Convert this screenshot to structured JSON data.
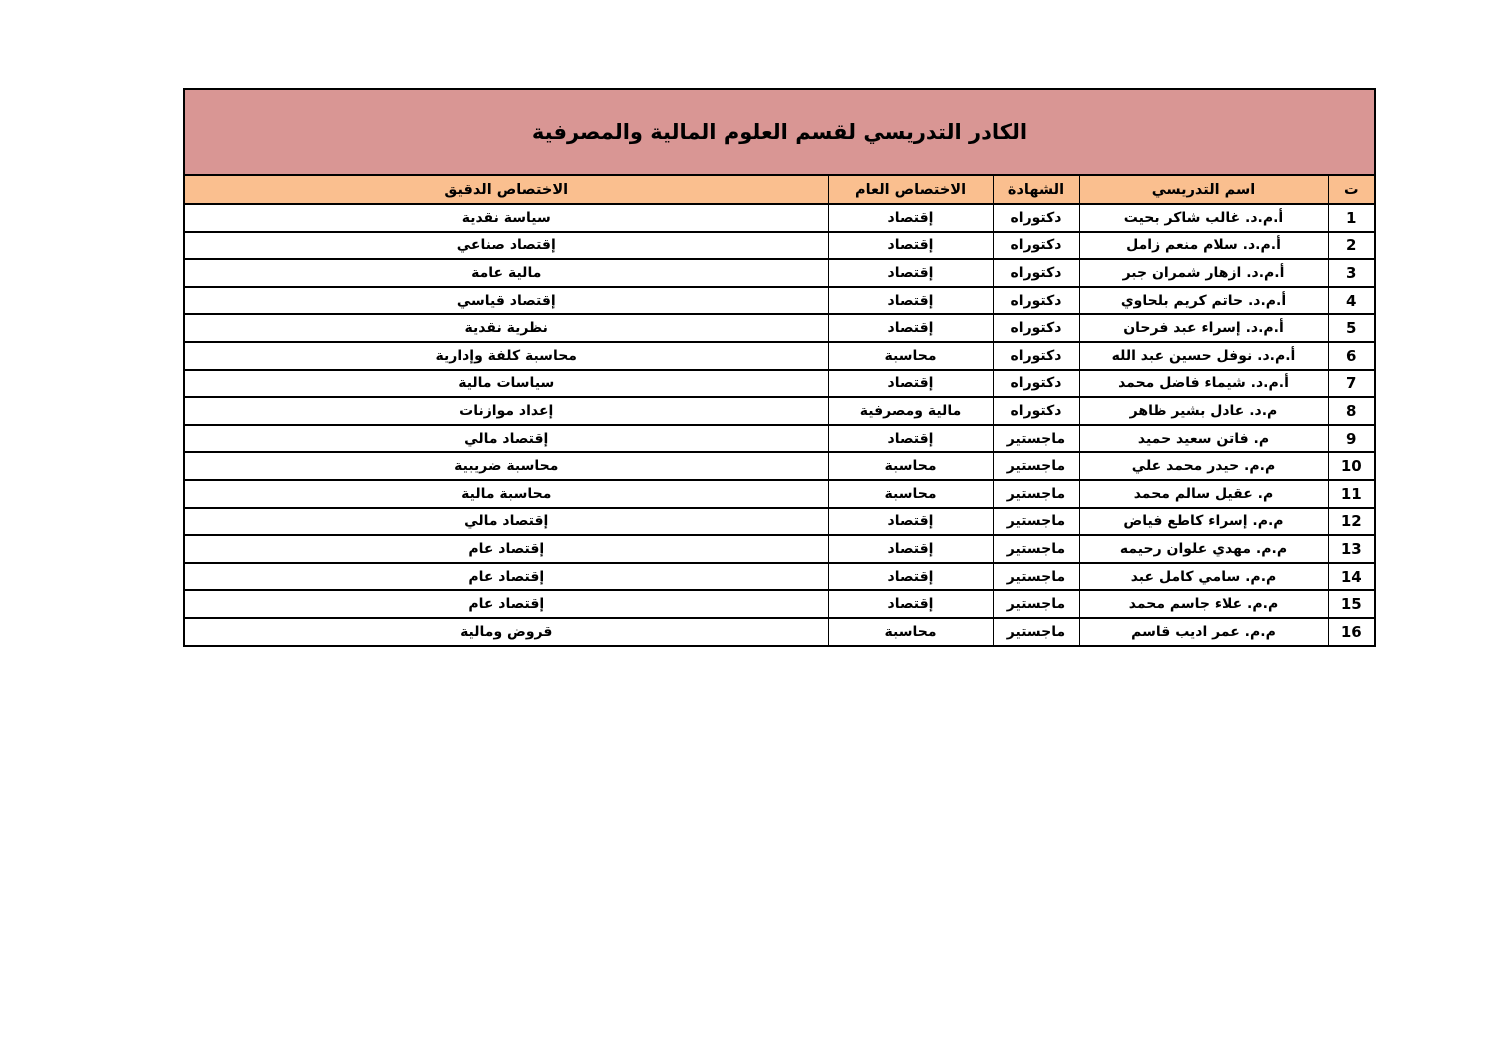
{
  "colors": {
    "title_bg": "#D99694",
    "header_bg": "#FABF8F",
    "border": "#000000",
    "text": "#000000",
    "page_bg": "#FFFFFF"
  },
  "table": {
    "title": "الكادر التدريسي لقسم العلوم المالية والمصرفية",
    "columns": [
      {
        "key": "no",
        "label": "ت"
      },
      {
        "key": "name",
        "label": "اسم التدريسي"
      },
      {
        "key": "degree",
        "label": "الشهادة"
      },
      {
        "key": "general",
        "label": "الاختصاص العام"
      },
      {
        "key": "precise",
        "label": "الاختصاص الدقيق"
      }
    ],
    "rows": [
      {
        "no": "1",
        "name": "أ.م.د. غالب شاكر بحيت",
        "degree": "دكتوراه",
        "general": "إقتصاد",
        "precise": "سياسة نقدية"
      },
      {
        "no": "2",
        "name": "أ.م.د. سلام منعم زامل",
        "degree": "دكتوراه",
        "general": "إقتصاد",
        "precise": "إقتصاد صناعي"
      },
      {
        "no": "3",
        "name": "أ.م.د. ازهار شمران جبر",
        "degree": "دكتوراه",
        "general": "إقتصاد",
        "precise": "مالية عامة"
      },
      {
        "no": "4",
        "name": "أ.م.د. حاتم كريم بلحاوي",
        "degree": "دكتوراه",
        "general": "إقتصاد",
        "precise": "إقتصاد قياسي"
      },
      {
        "no": "5",
        "name": "أ.م.د. إسراء عبد فرحان",
        "degree": "دكتوراه",
        "general": "إقتصاد",
        "precise": "نظرية نقدية"
      },
      {
        "no": "6",
        "name": "أ.م.د. نوفل حسين عبد الله",
        "degree": "دكتوراه",
        "general": "محاسبة",
        "precise": "محاسبة كلفة وإدارية"
      },
      {
        "no": "7",
        "name": "أ.م.د. شيماء فاضل محمد",
        "degree": "دكتوراه",
        "general": "إقتصاد",
        "precise": "سياسات مالية"
      },
      {
        "no": "8",
        "name": "م.د. عادل بشير ظاهر",
        "degree": "دكتوراه",
        "general": "مالية ومصرفية",
        "precise": "إعداد موازنات"
      },
      {
        "no": "9",
        "name": "م. فاتن سعيد حميد",
        "degree": "ماجستير",
        "general": "إقتصاد",
        "precise": "إقتصاد مالي"
      },
      {
        "no": "10",
        "name": "م.م. حيدر محمد علي",
        "degree": "ماجستير",
        "general": "محاسبة",
        "precise": "محاسبة ضريبية"
      },
      {
        "no": "11",
        "name": "م. عقيل سالم محمد",
        "degree": "ماجستير",
        "general": "محاسبة",
        "precise": "محاسبة مالية"
      },
      {
        "no": "12",
        "name": "م.م. إسراء كاطع فياض",
        "degree": "ماجستير",
        "general": "إقتصاد",
        "precise": "إقتصاد مالي"
      },
      {
        "no": "13",
        "name": "م.م. مهدي علوان رحيمه",
        "degree": "ماجستير",
        "general": "إقتصاد",
        "precise": "إقتصاد عام"
      },
      {
        "no": "14",
        "name": "م.م. سامي كامل عبد",
        "degree": "ماجستير",
        "general": "إقتصاد",
        "precise": "إقتصاد عام"
      },
      {
        "no": "15",
        "name": "م.م. علاء جاسم محمد",
        "degree": "ماجستير",
        "general": "إقتصاد",
        "precise": "إقتصاد عام"
      },
      {
        "no": "16",
        "name": "م.م. عمر اديب قاسم",
        "degree": "ماجستير",
        "general": "محاسبة",
        "precise": "قروض ومالية"
      }
    ]
  }
}
